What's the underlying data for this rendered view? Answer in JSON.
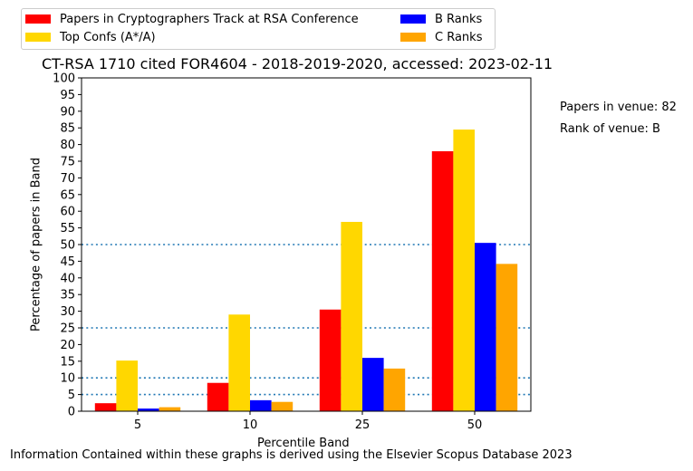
{
  "chart_data": {
    "type": "bar",
    "title": "CT-RSA 1710 cited FOR4604 - 2018-2019-2020, accessed: 2023-02-11",
    "xlabel": "Percentile Band",
    "ylabel": "Percentage of papers in Band",
    "categories": [
      "5",
      "10",
      "25",
      "50"
    ],
    "ylim": [
      0,
      100
    ],
    "yticks": [
      "0",
      "5",
      "10",
      "15",
      "20",
      "25",
      "30",
      "35",
      "40",
      "45",
      "50",
      "55",
      "60",
      "65",
      "70",
      "75",
      "80",
      "85",
      "90",
      "95",
      "100"
    ],
    "reference_lines": [
      5,
      10,
      25,
      50
    ],
    "grid": false,
    "legend_position": "top-left, above plot",
    "series": [
      {
        "name": "Papers in Cryptographers Track at RSA Conference",
        "color": "#ff0000",
        "values": [
          2.4,
          8.5,
          30.5,
          78.0
        ]
      },
      {
        "name": "Top Confs (A*/A)",
        "color": "#ffd700",
        "values": [
          15.2,
          29.0,
          56.8,
          84.5
        ]
      },
      {
        "name": "B Ranks",
        "color": "#0000ff",
        "values": [
          0.8,
          3.3,
          16.0,
          50.5
        ]
      },
      {
        "name": "C Ranks",
        "color": "#ffa500",
        "values": [
          1.2,
          2.8,
          12.8,
          44.2
        ]
      }
    ]
  },
  "legend": {
    "item1": "Papers in Cryptographers Track at RSA Conference",
    "item2": "Top Confs (A*/A)",
    "item3": "B Ranks",
    "item4": "C Ranks"
  },
  "annotations": {
    "papers_in_venue": "Papers in venue: 82",
    "rank_of_venue": "Rank of venue: B"
  },
  "footer": "Information Contained within these graphs is derived using the Elsevier Scopus Database 2023",
  "colors": {
    "reference_line": "#1f77b4"
  }
}
